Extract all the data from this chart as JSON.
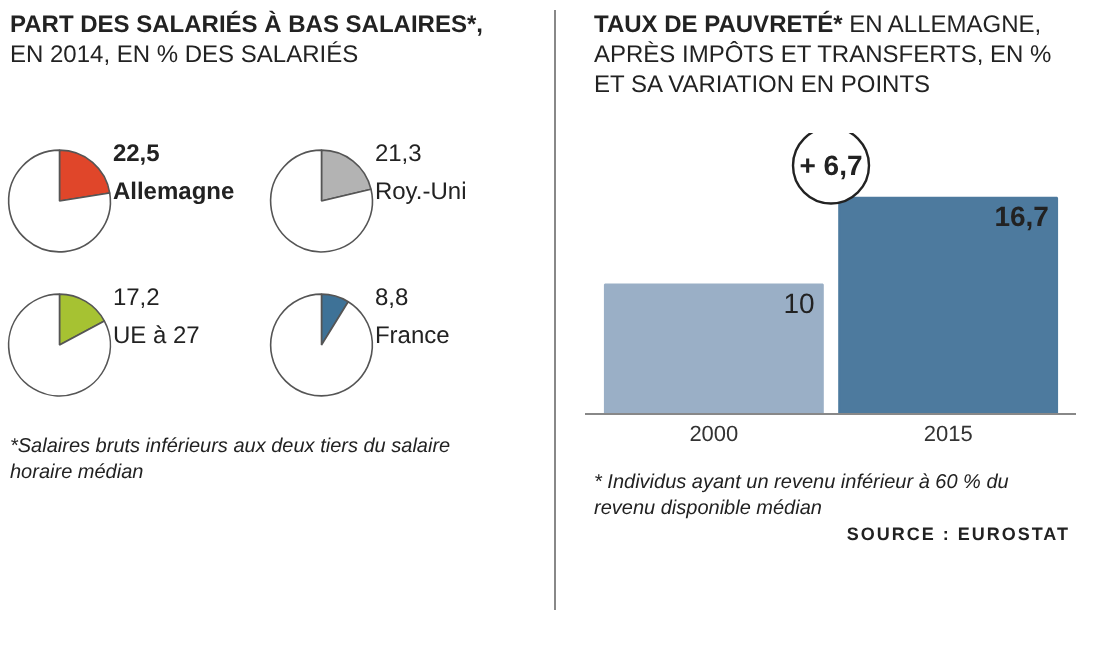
{
  "chart_data": [
    {
      "type": "pie",
      "title": "PART DES SALARIÉS À BAS SALAIRES*,",
      "subtitle": "EN 2014, EN % DES SALARIÉS",
      "categories": [
        "Allemagne",
        null
      ],
      "values": [
        22.5,
        77.5
      ],
      "colors": [
        "#e0462a",
        "#ffffff"
      ],
      "value_labels": [
        "22,5",
        null
      ]
    },
    {
      "type": "pie",
      "categories": [
        "Roy.-Uni",
        null
      ],
      "values": [
        21.3,
        78.7
      ],
      "colors": [
        "#b3b3b3",
        "#ffffff"
      ],
      "value_labels": [
        "21,3",
        null
      ]
    },
    {
      "type": "pie",
      "categories": [
        "UE à 27",
        null
      ],
      "values": [
        17.2,
        82.8
      ],
      "colors": [
        "#a6c232",
        "#ffffff"
      ],
      "value_labels": [
        "17,2",
        null
      ]
    },
    {
      "type": "pie",
      "categories": [
        "France",
        null
      ],
      "values": [
        8.8,
        91.2
      ],
      "colors": [
        "#3e7297",
        "#ffffff"
      ],
      "value_labels": [
        "8,8",
        null
      ],
      "annotations": [
        "*Salaires bruts inférieurs aux deux tiers du salaire horaire médian"
      ]
    },
    {
      "type": "bar",
      "title": "TAUX DE PAUVRETÉ*",
      "subtitle": "EN ALLEMAGNE, APRÈS IMPÔTS ET TRANSFERTS, EN % ET SA VARIATION EN POINTS",
      "categories": [
        "2000",
        "2015"
      ],
      "values": [
        10,
        16.7
      ],
      "colors": [
        "#9aafc6",
        "#4d7a9e"
      ],
      "value_labels": [
        "10",
        "16,7"
      ],
      "annotations": [
        "+ 6,7",
        "* Individus ayant un revenu inférieur à 60 % du revenu disponible médian",
        "SOURCE : EUROSTAT"
      ]
    }
  ]
}
